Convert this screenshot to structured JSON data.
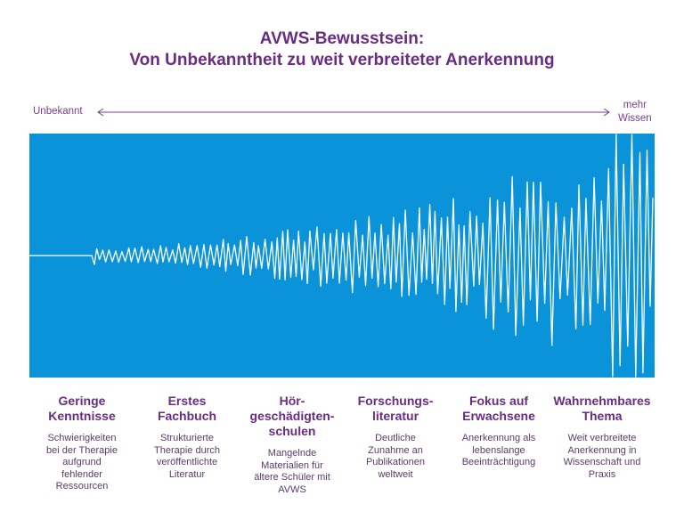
{
  "title": {
    "line1": "AVWS-Bewusstsein:",
    "line2": "Von Unbekanntheit zu weit verbreiteter Anerkennung"
  },
  "axis": {
    "left_label": "Unbekannt",
    "right_label_line1": "mehr",
    "right_label_line2": "Wissen"
  },
  "colors": {
    "title": "#6a2c82",
    "panel": "#0a93d8",
    "wave": "#ffffff",
    "text": "#5a3b6b"
  },
  "stages": [
    {
      "heading": [
        "Geringe",
        "Kenntnisse"
      ],
      "text": [
        "Schwierigkeiten",
        "bei der Therapie",
        "aufgrund",
        "fehlender",
        "Ressourcen"
      ]
    },
    {
      "heading": [
        "Erstes",
        "Fachbuch"
      ],
      "text": [
        "Strukturierte",
        "Therapie durch",
        "veröffentlichte",
        "Literatur"
      ]
    },
    {
      "heading": [
        "Hör-",
        "geschädigten-",
        "schulen"
      ],
      "text": [
        "Mangelnde",
        "Materialien für",
        "ältere Schüler mit",
        "AVWS"
      ]
    },
    {
      "heading": [
        "Forschungs-",
        "literatur"
      ],
      "text": [
        "Deutliche",
        "Zunahme an",
        "Publikationen",
        "weltweit"
      ]
    },
    {
      "heading": [
        "Fokus auf",
        "Erwachsene"
      ],
      "text": [
        "Anerkennung als",
        "lebenslange",
        "Beeinträchtigung"
      ]
    },
    {
      "heading": [
        "Wahrnehmbares",
        "Thema"
      ],
      "text": [
        "Weit verbreitete",
        "Anerkennung in",
        "Wissenschaft und",
        "Praxis"
      ]
    }
  ]
}
